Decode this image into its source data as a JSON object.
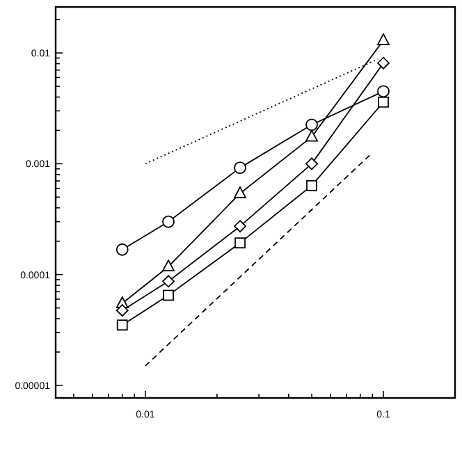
{
  "chart_data": {
    "type": "line",
    "log": "xy",
    "grid": false,
    "xlim": [
      0.0042,
      0.2
    ],
    "ylim": [
      7.7e-06,
      0.026
    ],
    "xticks": [
      {
        "value": 0.005,
        "label": null
      },
      {
        "value": 0.006,
        "label": null
      },
      {
        "value": 0.007,
        "label": null
      },
      {
        "value": 0.008,
        "label": null
      },
      {
        "value": 0.009,
        "label": null
      },
      {
        "value": 0.01,
        "label": "0.01"
      },
      {
        "value": 0.02,
        "label": null
      },
      {
        "value": 0.03,
        "label": null
      },
      {
        "value": 0.04,
        "label": null
      },
      {
        "value": 0.05,
        "label": null
      },
      {
        "value": 0.06,
        "label": null
      },
      {
        "value": 0.07,
        "label": null
      },
      {
        "value": 0.08,
        "label": null
      },
      {
        "value": 0.09,
        "label": null
      },
      {
        "value": 0.1,
        "label": "0.1"
      }
    ],
    "yticks": [
      {
        "value": 1e-05,
        "label": "0.00001"
      },
      {
        "value": 2e-05,
        "label": null
      },
      {
        "value": 3e-05,
        "label": null
      },
      {
        "value": 4e-05,
        "label": null
      },
      {
        "value": 5e-05,
        "label": null
      },
      {
        "value": 6e-05,
        "label": null
      },
      {
        "value": 7e-05,
        "label": null
      },
      {
        "value": 8e-05,
        "label": null
      },
      {
        "value": 9e-05,
        "label": null
      },
      {
        "value": 0.0001,
        "label": "0.0001"
      },
      {
        "value": 0.0002,
        "label": null
      },
      {
        "value": 0.0003,
        "label": null
      },
      {
        "value": 0.0004,
        "label": null
      },
      {
        "value": 0.0005,
        "label": null
      },
      {
        "value": 0.0006,
        "label": null
      },
      {
        "value": 0.0007,
        "label": null
      },
      {
        "value": 0.0008,
        "label": null
      },
      {
        "value": 0.0009,
        "label": null
      },
      {
        "value": 0.001,
        "label": "0.001"
      },
      {
        "value": 0.002,
        "label": null
      },
      {
        "value": 0.003,
        "label": null
      },
      {
        "value": 0.004,
        "label": null
      },
      {
        "value": 0.005,
        "label": null
      },
      {
        "value": 0.006,
        "label": null
      },
      {
        "value": 0.007,
        "label": null
      },
      {
        "value": 0.008,
        "label": null
      },
      {
        "value": 0.009,
        "label": null
      },
      {
        "value": 0.01,
        "label": "0.01"
      },
      {
        "value": 0.02,
        "label": null
      }
    ],
    "x": [
      0.008,
      0.0125,
      0.025,
      0.05,
      0.1
    ],
    "series": [
      {
        "color": "#000000",
        "marker": "circle",
        "line_style": "solid",
        "values": [
          0.000168,
          0.0003,
          0.00092,
          0.00225,
          0.0045
        ]
      },
      {
        "color": "#000000",
        "marker": "triangle",
        "line_style": "solid",
        "values": [
          5.5e-05,
          0.000118,
          0.00054,
          0.00175,
          0.013
        ]
      },
      {
        "color": "#000000",
        "marker": "diamond",
        "line_style": "solid",
        "values": [
          4.75e-05,
          8.7e-05,
          0.000273,
          0.001,
          0.0081
        ]
      },
      {
        "color": "#000000",
        "marker": "square",
        "line_style": "solid",
        "values": [
          3.5e-05,
          6.5e-05,
          0.000193,
          0.000635,
          0.0036
        ]
      },
      {
        "color": "#000000",
        "marker": "none",
        "line_style": "dotted",
        "x": [
          0.01,
          0.095
        ],
        "values": [
          0.001,
          0.0088
        ]
      },
      {
        "color": "#000000",
        "marker": "none",
        "line_style": "dashed",
        "x": [
          0.01,
          0.09
        ],
        "values": [
          1.5e-05,
          0.00126
        ]
      }
    ]
  }
}
